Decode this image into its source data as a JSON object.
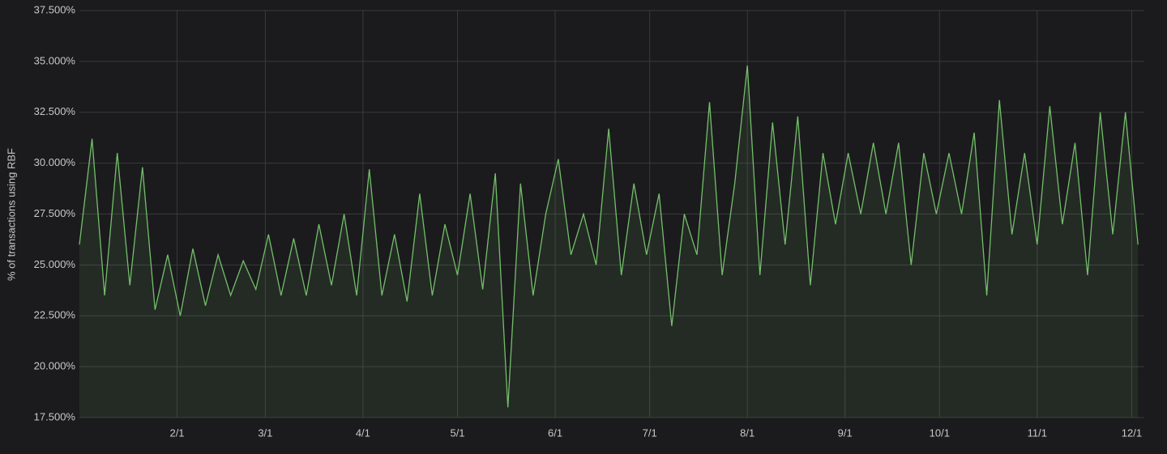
{
  "chart_data": {
    "type": "area",
    "y_label": "% of transactions using RBF",
    "x": [
      "1/1",
      "1/5",
      "1/9",
      "1/13",
      "1/17",
      "1/21",
      "1/25",
      "1/29",
      "2/2",
      "2/6",
      "2/10",
      "2/14",
      "2/18",
      "2/22",
      "2/26",
      "3/2",
      "3/6",
      "3/10",
      "3/14",
      "3/18",
      "3/22",
      "3/26",
      "3/30",
      "4/3",
      "4/7",
      "4/11",
      "4/15",
      "4/19",
      "4/23",
      "4/27",
      "5/1",
      "5/5",
      "5/9",
      "5/13",
      "5/17",
      "5/21",
      "5/25",
      "5/29",
      "6/2",
      "6/6",
      "6/10",
      "6/14",
      "6/18",
      "6/22",
      "6/26",
      "6/30",
      "7/4",
      "7/8",
      "7/12",
      "7/16",
      "7/20",
      "7/24",
      "7/28",
      "8/1",
      "8/5",
      "8/9",
      "8/13",
      "8/17",
      "8/21",
      "8/25",
      "8/29",
      "9/2",
      "9/6",
      "9/10",
      "9/14",
      "9/18",
      "9/22",
      "9/26",
      "9/30",
      "10/4",
      "10/8",
      "10/12",
      "10/16",
      "10/20",
      "10/24",
      "10/28",
      "11/1",
      "11/5",
      "11/9",
      "11/13",
      "11/17",
      "11/21",
      "11/25",
      "11/29",
      "12/3"
    ],
    "series": [
      {
        "color": "#73bf69",
        "values": [
          26,
          31.2,
          23.5,
          30.5,
          24,
          29.8,
          22.8,
          25.5,
          22.5,
          25.8,
          23,
          25.5,
          23.5,
          25.2,
          23.8,
          26.5,
          23.5,
          26.3,
          23.5,
          27,
          24,
          27.5,
          23.5,
          29.7,
          23.5,
          26.5,
          23.2,
          28.5,
          23.5,
          27,
          24.5,
          28.5,
          23.8,
          29.5,
          18,
          29,
          23.5,
          27.5,
          30.2,
          25.5,
          27.5,
          25,
          31.7,
          24.5,
          29,
          25.5,
          28.5,
          22,
          27.5,
          25.5,
          33,
          24.5,
          29,
          34.8,
          24.5,
          32,
          26,
          32.3,
          24,
          30.5,
          27,
          30.5,
          27.5,
          31,
          27.5,
          31,
          25,
          30.5,
          27.5,
          30.5,
          27.5,
          31.5,
          23.5,
          33.1,
          26.5,
          30.5,
          26,
          32.8,
          27,
          31,
          24.5,
          32.5,
          26.5,
          32.5,
          26
        ]
      }
    ],
    "xlim": [
      "1/1",
      "12/5"
    ],
    "xticks": [
      "2/1",
      "3/1",
      "4/1",
      "5/1",
      "6/1",
      "7/1",
      "8/1",
      "9/1",
      "10/1",
      "11/1",
      "12/1"
    ],
    "ylim": [
      17.5,
      37.5
    ],
    "yticks": [
      {
        "value": 17.5,
        "label": "17.500%"
      },
      {
        "value": 20,
        "label": "20.000%"
      },
      {
        "value": 22.5,
        "label": "22.500%"
      },
      {
        "value": 25,
        "label": "25.000%"
      },
      {
        "value": 27.5,
        "label": "27.500%"
      },
      {
        "value": 30,
        "label": "30.000%"
      },
      {
        "value": 32.5,
        "label": "32.500%"
      },
      {
        "value": 35,
        "label": "35.000%"
      },
      {
        "value": 37.5,
        "label": "37.500%"
      }
    ],
    "grid": true
  }
}
